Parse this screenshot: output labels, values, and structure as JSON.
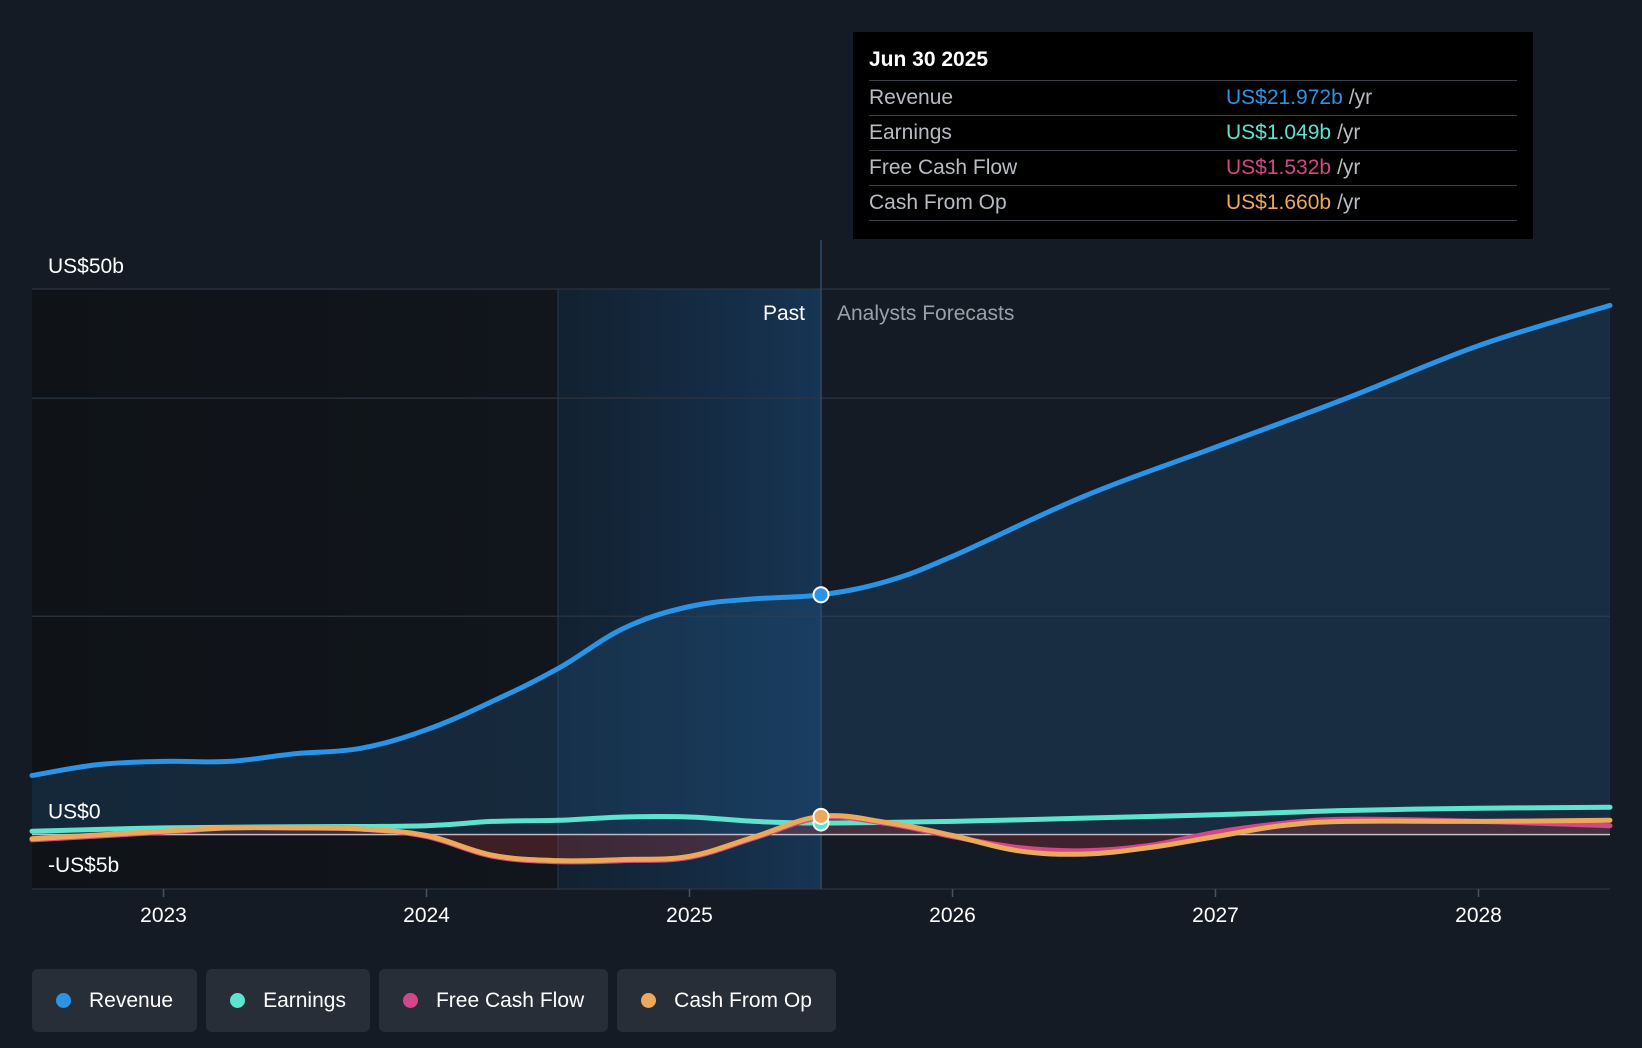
{
  "chart_data": {
    "type": "line",
    "title": "",
    "xlabel": "",
    "ylabel": "",
    "ylim": [
      -5,
      50
    ],
    "y_axis_labels": {
      "top": "US$50b",
      "zero": "US$0",
      "bottom": "-US$5b"
    },
    "x_ticks": [
      "2023",
      "2024",
      "2025",
      "2026",
      "2027",
      "2028"
    ],
    "x_range": [
      2022.5,
      2028.5
    ],
    "past_label": "Past",
    "forecast_label": "Analysts Forecasts",
    "divider_x": 2025.5,
    "highlight_start_x": 2024.5,
    "series": [
      {
        "name": "Revenue",
        "color": "#2b94e6",
        "x": [
          2022.5,
          2022.75,
          2023.0,
          2023.25,
          2023.5,
          2023.75,
          2024.0,
          2024.25,
          2024.5,
          2024.75,
          2025.0,
          2025.25,
          2025.5,
          2025.75,
          2026.0,
          2026.5,
          2027.0,
          2027.5,
          2028.0,
          2028.5
        ],
        "values": [
          5.4,
          6.4,
          6.7,
          6.7,
          7.4,
          7.9,
          9.6,
          12.2,
          15.2,
          18.9,
          20.9,
          21.6,
          21.972,
          23.2,
          25.5,
          31.0,
          35.5,
          40.0,
          44.8,
          48.5
        ]
      },
      {
        "name": "Earnings",
        "color": "#5ee3cf",
        "x": [
          2022.5,
          2023.0,
          2023.5,
          2024.0,
          2024.25,
          2024.5,
          2024.75,
          2025.0,
          2025.25,
          2025.5,
          2026.0,
          2026.5,
          2027.0,
          2027.5,
          2028.0,
          2028.5
        ],
        "values": [
          0.3,
          0.6,
          0.7,
          0.8,
          1.2,
          1.3,
          1.6,
          1.6,
          1.2,
          1.049,
          1.2,
          1.5,
          1.8,
          2.2,
          2.4,
          2.5
        ]
      },
      {
        "name": "Free Cash Flow",
        "color": "#d4468a",
        "x": [
          2022.5,
          2023.0,
          2023.25,
          2023.5,
          2023.75,
          2024.0,
          2024.25,
          2024.5,
          2024.75,
          2025.0,
          2025.25,
          2025.5,
          2025.75,
          2026.0,
          2026.25,
          2026.5,
          2026.75,
          2027.0,
          2027.25,
          2027.5,
          2028.0,
          2028.5
        ],
        "values": [
          -0.5,
          0.2,
          0.6,
          0.6,
          0.5,
          -0.2,
          -2.0,
          -2.5,
          -2.4,
          -2.1,
          -0.3,
          1.532,
          1.0,
          -0.2,
          -1.2,
          -1.5,
          -1.0,
          0.2,
          1.0,
          1.4,
          1.2,
          0.8
        ]
      },
      {
        "name": "Cash From Op",
        "color": "#eba95c",
        "x": [
          2022.5,
          2023.0,
          2023.25,
          2023.5,
          2023.75,
          2024.0,
          2024.25,
          2024.5,
          2024.75,
          2025.0,
          2025.25,
          2025.5,
          2025.75,
          2026.0,
          2026.25,
          2026.5,
          2026.75,
          2027.0,
          2027.25,
          2027.5,
          2028.0,
          2028.5
        ],
        "values": [
          -0.4,
          0.3,
          0.6,
          0.6,
          0.5,
          -0.1,
          -1.9,
          -2.4,
          -2.3,
          -2.0,
          -0.2,
          1.66,
          1.1,
          -0.1,
          -1.5,
          -1.8,
          -1.2,
          -0.2,
          0.8,
          1.2,
          1.2,
          1.3
        ]
      }
    ]
  },
  "tooltip": {
    "date": "Jun 30 2025",
    "unit": "/yr",
    "rows": [
      {
        "label": "Revenue",
        "value": "US$21.972b",
        "color": "#2b94e6"
      },
      {
        "label": "Earnings",
        "value": "US$1.049b",
        "color": "#5ee3cf"
      },
      {
        "label": "Free Cash Flow",
        "value": "US$1.532b",
        "color": "#d4468a"
      },
      {
        "label": "Cash From Op",
        "value": "US$1.660b",
        "color": "#eba95c"
      }
    ]
  },
  "legend": [
    {
      "label": "Revenue",
      "color": "#2b94e6"
    },
    {
      "label": "Earnings",
      "color": "#5ee3cf"
    },
    {
      "label": "Free Cash Flow",
      "color": "#d4468a"
    },
    {
      "label": "Cash From Op",
      "color": "#eba95c"
    }
  ]
}
